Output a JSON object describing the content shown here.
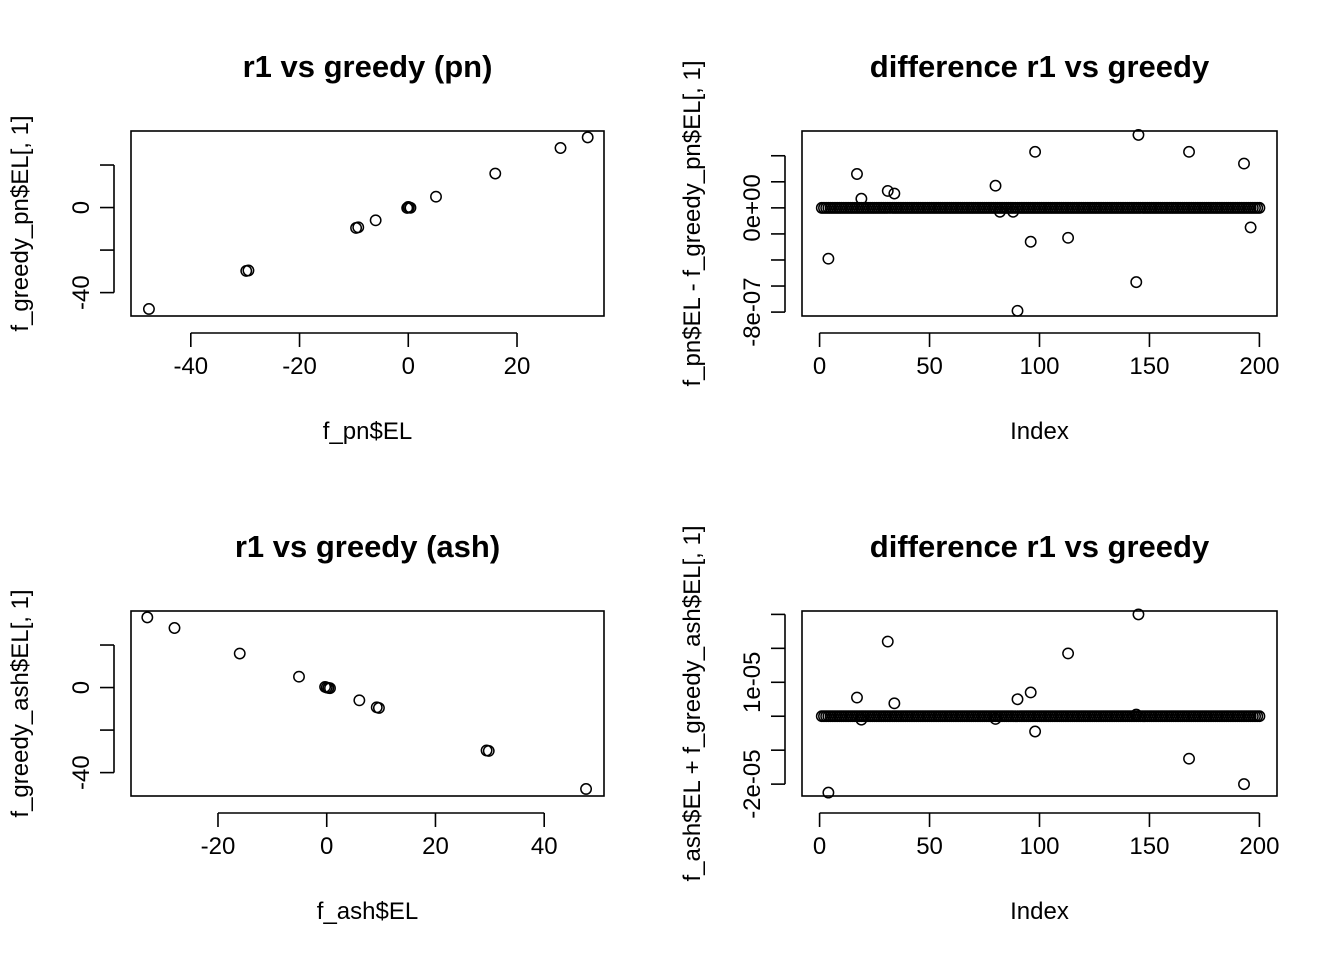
{
  "chart_data": [
    {
      "type": "scatter",
      "title": "r1 vs greedy (pn)",
      "xlabel": "f_pn$EL",
      "ylabel": "f_greedy_pn$EL[, 1]",
      "xlim": [
        -51,
        36
      ],
      "ylim": [
        -51,
        36
      ],
      "xticks": [
        -40,
        -20,
        0,
        20
      ],
      "xtick_labels": [
        "-40",
        "-20",
        "0",
        "20"
      ],
      "yticks": [
        -40,
        -20,
        0,
        20
      ],
      "ytick_labels": [
        "-40",
        "",
        "0",
        ""
      ],
      "grid": false,
      "points": [
        {
          "x": -47.7,
          "y": -47.7
        },
        {
          "x": -29.8,
          "y": -29.8
        },
        {
          "x": -29.4,
          "y": -29.6
        },
        {
          "x": -9.6,
          "y": -9.6
        },
        {
          "x": -9.2,
          "y": -9.3
        },
        {
          "x": -6.0,
          "y": -6.0
        },
        {
          "x": -0.2,
          "y": -0.2
        },
        {
          "x": 0.1,
          "y": 0.1
        },
        {
          "x": 0.4,
          "y": -0.1
        },
        {
          "x": 0.0,
          "y": 0.3
        },
        {
          "x": 5.1,
          "y": 5.1
        },
        {
          "x": 16.0,
          "y": 16.0
        },
        {
          "x": 28.0,
          "y": 28.0
        },
        {
          "x": 33.0,
          "y": 33.0
        }
      ]
    },
    {
      "type": "scatter",
      "title": "difference r1 vs greedy",
      "xlabel": "Index",
      "ylabel": "f_pn$EL - f_greedy_pn$EL[, 1]",
      "xlim": [
        -8,
        208
      ],
      "ylim": [
        -8.3e-07,
        5.9e-07
      ],
      "xticks": [
        0,
        50,
        100,
        150,
        200
      ],
      "xtick_labels": [
        "0",
        "50",
        "100",
        "150",
        "200"
      ],
      "yticks": [
        -8e-07,
        -6e-07,
        -4e-07,
        -2e-07,
        0,
        2e-07,
        4e-07
      ],
      "ytick_labels": [
        "-8e-07",
        "",
        "",
        "",
        "0e+00",
        "",
        ""
      ],
      "grid": false,
      "baseline": {
        "y": 0,
        "index_from": 1,
        "index_to": 200
      },
      "outliers": [
        {
          "x": 4,
          "y": -3.9e-07
        },
        {
          "x": 17,
          "y": 2.6e-07
        },
        {
          "x": 19,
          "y": 7e-08
        },
        {
          "x": 31,
          "y": 1.3e-07
        },
        {
          "x": 34,
          "y": 1.1e-07
        },
        {
          "x": 80,
          "y": 1.7e-07
        },
        {
          "x": 82,
          "y": -3e-08
        },
        {
          "x": 88,
          "y": -3e-08
        },
        {
          "x": 90,
          "y": -7.9e-07
        },
        {
          "x": 96,
          "y": -2.6e-07
        },
        {
          "x": 98,
          "y": 4.3e-07
        },
        {
          "x": 113,
          "y": -2.3e-07
        },
        {
          "x": 144,
          "y": -5.7e-07
        },
        {
          "x": 145,
          "y": 5.6e-07
        },
        {
          "x": 168,
          "y": 4.3e-07
        },
        {
          "x": 193,
          "y": 3.4e-07
        },
        {
          "x": 196,
          "y": -1.5e-07
        }
      ]
    },
    {
      "type": "scatter",
      "title": "r1 vs greedy (ash)",
      "xlabel": "f_ash$EL",
      "ylabel": "f_greedy_ash$EL[, 1]",
      "xlim": [
        -36,
        51
      ],
      "ylim": [
        -51,
        36
      ],
      "xticks": [
        -20,
        0,
        20,
        40
      ],
      "xtick_labels": [
        "-20",
        "0",
        "20",
        "40"
      ],
      "yticks": [
        -40,
        -20,
        0,
        20
      ],
      "ytick_labels": [
        "-40",
        "",
        "0",
        ""
      ],
      "grid": false,
      "points": [
        {
          "x": -33.0,
          "y": 33.0
        },
        {
          "x": -28.0,
          "y": 28.0
        },
        {
          "x": -16.0,
          "y": 16.0
        },
        {
          "x": -5.1,
          "y": 5.1
        },
        {
          "x": -0.3,
          "y": 0.3
        },
        {
          "x": 0.0,
          "y": 0.0
        },
        {
          "x": 0.3,
          "y": -0.2
        },
        {
          "x": 0.6,
          "y": -0.3
        },
        {
          "x": 6.0,
          "y": -6.0
        },
        {
          "x": 9.2,
          "y": -9.3
        },
        {
          "x": 9.6,
          "y": -9.6
        },
        {
          "x": 29.4,
          "y": -29.6
        },
        {
          "x": 29.8,
          "y": -29.8
        },
        {
          "x": 47.7,
          "y": -47.7
        }
      ]
    },
    {
      "type": "scatter",
      "title": "difference r1 vs greedy",
      "xlabel": "Index",
      "ylabel": "f_ash$EL + f_greedy_ash$EL[, 1]",
      "xlim": [
        -8,
        208
      ],
      "ylim": [
        -2.35e-05,
        3.1e-05
      ],
      "xticks": [
        0,
        50,
        100,
        150,
        200
      ],
      "xtick_labels": [
        "0",
        "50",
        "100",
        "150",
        "200"
      ],
      "yticks": [
        -2e-05,
        -1e-05,
        0,
        1e-05,
        2e-05,
        3e-05
      ],
      "ytick_labels": [
        "-2e-05",
        "",
        "",
        "1e-05",
        "",
        ""
      ],
      "grid": false,
      "baseline": {
        "y": 0,
        "index_from": 1,
        "index_to": 200
      },
      "outliers": [
        {
          "x": 4,
          "y": -2.25e-05
        },
        {
          "x": 17,
          "y": 5.5e-06
        },
        {
          "x": 19,
          "y": -1e-06
        },
        {
          "x": 31,
          "y": 2.2e-05
        },
        {
          "x": 34,
          "y": 3.8e-06
        },
        {
          "x": 80,
          "y": -8e-07
        },
        {
          "x": 90,
          "y": 5e-06
        },
        {
          "x": 96,
          "y": 7e-06
        },
        {
          "x": 98,
          "y": -4.5e-06
        },
        {
          "x": 113,
          "y": 1.85e-05
        },
        {
          "x": 144,
          "y": 5e-07
        },
        {
          "x": 145,
          "y": 3e-05
        },
        {
          "x": 168,
          "y": -1.25e-05
        },
        {
          "x": 193,
          "y": -2e-05
        }
      ]
    }
  ]
}
